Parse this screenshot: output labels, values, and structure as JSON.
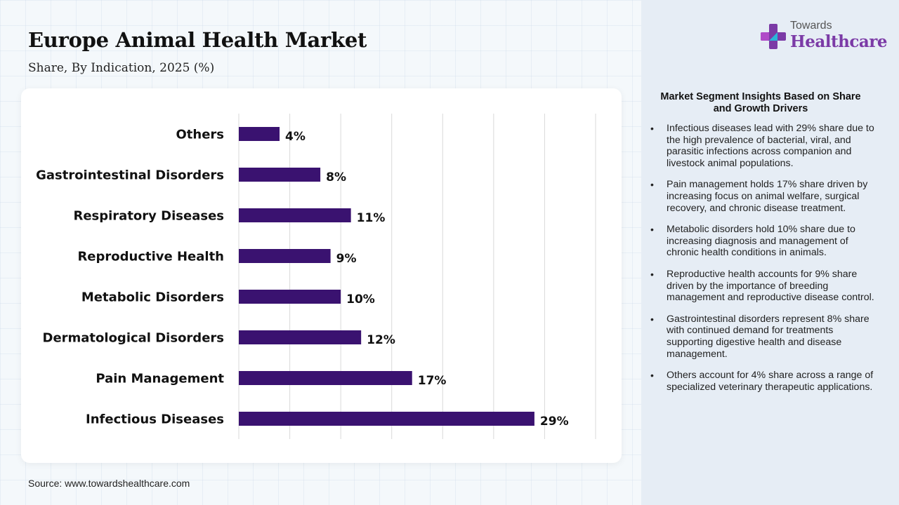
{
  "title": "Europe Animal Health Market",
  "subtitle": "Share, By Indication, 2025 (%)",
  "source": "Source: www.towardshealthcare.com",
  "logo": {
    "top": "Towards",
    "bottom": "Healthcare",
    "accent": "#7b3aa6",
    "icon": "cross-icon"
  },
  "insights": {
    "title": "Market Segment Insights Based on Share and Growth Drivers",
    "items": [
      "Infectious diseases lead with 29% share due to the high prevalence of bacterial, viral, and parasitic infections across companion and livestock animal populations.",
      "Pain management holds 17% share driven by increasing focus on animal welfare, surgical recovery, and chronic disease treatment.",
      "Metabolic disorders hold 10% share due to increasing diagnosis and management of chronic health conditions in animals.",
      "Reproductive health accounts for 9% share driven by the importance of breeding management and reproductive disease control.",
      "Gastrointestinal disorders represent 8% share with continued demand for treatments supporting digestive health and disease management.",
      "Others account for 4% share across a range of specialized veterinary therapeutic applications."
    ]
  },
  "chart_data": {
    "type": "bar",
    "orientation": "horizontal",
    "categories": [
      "Others",
      "Gastrointestinal Disorders",
      "Respiratory Diseases",
      "Reproductive Health",
      "Metabolic Disorders",
      "Dermatological Disorders",
      "Pain Management",
      "Infectious Diseases"
    ],
    "values": [
      4,
      8,
      11,
      9,
      10,
      12,
      17,
      29
    ],
    "value_labels": [
      "4%",
      "8%",
      "11%",
      "9%",
      "10%",
      "12%",
      "17%",
      "29%"
    ],
    "xlim": [
      0,
      35
    ],
    "grid": true,
    "bar_color": "#3a1270"
  }
}
